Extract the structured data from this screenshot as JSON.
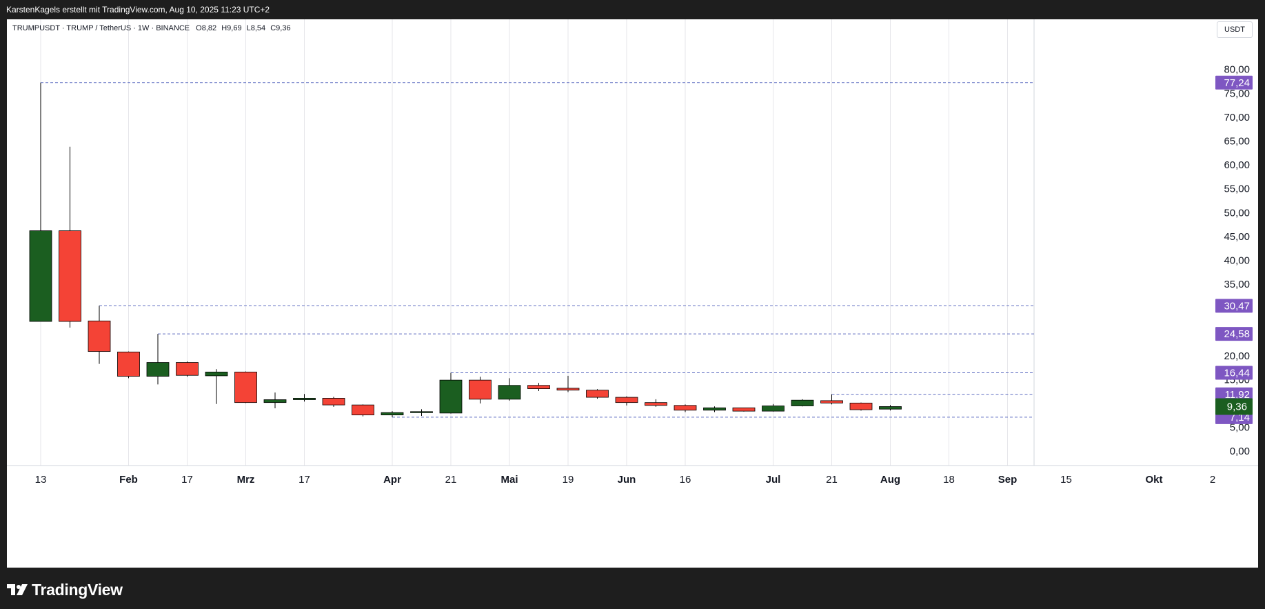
{
  "header": {
    "attribution": "KarstenKagels erstellt mit TradingView.com, Aug 10, 2025 11:23 UTC+2"
  },
  "legend": {
    "symbol": "TRUMPUSDT · TRUMP / TetherUS · 1W · BINANCE",
    "open": "O8,82",
    "high": "H9,69",
    "low": "L8,54",
    "close": "C9,36"
  },
  "axis": {
    "currency": "USDT"
  },
  "footer": {
    "brand": "TradingView"
  },
  "colors": {
    "up": "#1b5e20",
    "down": "#f44336",
    "level": "#7e57c2",
    "level_line": "#5c6bc0",
    "last_price": "#1b5e20"
  },
  "chart_data": {
    "type": "candlestick",
    "interval": "1W",
    "ylim": [
      -3,
      84
    ],
    "y_ticks": [
      {
        "value": 0,
        "label": "0,00"
      },
      {
        "value": 5,
        "label": "5,00"
      },
      {
        "value": 15,
        "label": "15,00"
      },
      {
        "value": 20,
        "label": "20,00"
      },
      {
        "value": 35,
        "label": "35,00"
      },
      {
        "value": 40,
        "label": "40,00"
      },
      {
        "value": 45,
        "label": "45,00"
      },
      {
        "value": 50,
        "label": "50,00"
      },
      {
        "value": 55,
        "label": "55,00"
      },
      {
        "value": 60,
        "label": "60,00"
      },
      {
        "value": 65,
        "label": "65,00"
      },
      {
        "value": 70,
        "label": "70,00"
      },
      {
        "value": 75,
        "label": "75,00"
      },
      {
        "value": 80,
        "label": "80,00"
      }
    ],
    "x_ticks": [
      {
        "index": 0,
        "label": "13",
        "bold": false
      },
      {
        "index": 3,
        "label": "Feb",
        "bold": true
      },
      {
        "index": 5,
        "label": "17",
        "bold": false
      },
      {
        "index": 7,
        "label": "Mrz",
        "bold": true
      },
      {
        "index": 9,
        "label": "17",
        "bold": false
      },
      {
        "index": 12,
        "label": "Apr",
        "bold": true
      },
      {
        "index": 14,
        "label": "21",
        "bold": false
      },
      {
        "index": 16,
        "label": "Mai",
        "bold": true
      },
      {
        "index": 18,
        "label": "19",
        "bold": false
      },
      {
        "index": 20,
        "label": "Jun",
        "bold": true
      },
      {
        "index": 22,
        "label": "16",
        "bold": false
      },
      {
        "index": 25,
        "label": "Jul",
        "bold": true
      },
      {
        "index": 27,
        "label": "21",
        "bold": false
      },
      {
        "index": 29,
        "label": "Aug",
        "bold": true
      },
      {
        "index": 31,
        "label": "18",
        "bold": false
      },
      {
        "index": 33,
        "label": "Sep",
        "bold": true
      },
      {
        "index": 35,
        "label": "15",
        "bold": false
      },
      {
        "index": 38,
        "label": "Okt",
        "bold": true
      },
      {
        "index": 40,
        "label": "2",
        "bold": false
      }
    ],
    "candles": [
      {
        "o": 27.2,
        "h": 77.24,
        "l": 27.2,
        "c": 46.2
      },
      {
        "o": 46.2,
        "h": 63.8,
        "l": 25.9,
        "c": 27.2
      },
      {
        "o": 27.3,
        "h": 30.47,
        "l": 18.3,
        "c": 20.9
      },
      {
        "o": 20.8,
        "h": 20.9,
        "l": 15.3,
        "c": 15.7
      },
      {
        "o": 15.7,
        "h": 24.58,
        "l": 14.0,
        "c": 18.6
      },
      {
        "o": 18.6,
        "h": 18.8,
        "l": 15.6,
        "c": 15.9
      },
      {
        "o": 15.8,
        "h": 17.2,
        "l": 9.9,
        "c": 16.6
      },
      {
        "o": 16.6,
        "h": 16.7,
        "l": 10.1,
        "c": 10.2
      },
      {
        "o": 10.2,
        "h": 12.3,
        "l": 9.0,
        "c": 10.8
      },
      {
        "o": 10.8,
        "h": 12.0,
        "l": 10.4,
        "c": 11.1
      },
      {
        "o": 11.1,
        "h": 11.4,
        "l": 9.3,
        "c": 9.7
      },
      {
        "o": 9.7,
        "h": 9.8,
        "l": 7.3,
        "c": 7.6
      },
      {
        "o": 7.6,
        "h": 8.4,
        "l": 7.14,
        "c": 8.1
      },
      {
        "o": 8.1,
        "h": 8.8,
        "l": 7.4,
        "c": 8.3
      },
      {
        "o": 8.0,
        "h": 16.44,
        "l": 7.9,
        "c": 14.9
      },
      {
        "o": 14.9,
        "h": 15.6,
        "l": 10.0,
        "c": 10.9
      },
      {
        "o": 10.9,
        "h": 15.3,
        "l": 10.6,
        "c": 13.8
      },
      {
        "o": 13.8,
        "h": 14.3,
        "l": 12.6,
        "c": 13.1
      },
      {
        "o": 13.2,
        "h": 15.8,
        "l": 12.4,
        "c": 12.8
      },
      {
        "o": 12.8,
        "h": 13.0,
        "l": 11.0,
        "c": 11.3
      },
      {
        "o": 11.3,
        "h": 11.5,
        "l": 9.6,
        "c": 10.2
      },
      {
        "o": 10.2,
        "h": 10.9,
        "l": 9.3,
        "c": 9.6
      },
      {
        "o": 9.6,
        "h": 9.8,
        "l": 8.2,
        "c": 8.6
      },
      {
        "o": 8.6,
        "h": 9.4,
        "l": 8.2,
        "c": 9.1
      },
      {
        "o": 9.1,
        "h": 9.1,
        "l": 8.3,
        "c": 8.4
      },
      {
        "o": 8.4,
        "h": 9.9,
        "l": 8.3,
        "c": 9.5
      },
      {
        "o": 9.5,
        "h": 10.9,
        "l": 9.4,
        "c": 10.7
      },
      {
        "o": 10.6,
        "h": 11.92,
        "l": 9.8,
        "c": 10.1
      },
      {
        "o": 10.1,
        "h": 10.2,
        "l": 8.5,
        "c": 8.7
      },
      {
        "o": 8.82,
        "h": 9.69,
        "l": 8.54,
        "c": 9.36
      }
    ],
    "levels": [
      {
        "value": 77.24,
        "label": "77,24",
        "from_index": 0
      },
      {
        "value": 30.47,
        "label": "30,47",
        "from_index": 2
      },
      {
        "value": 24.58,
        "label": "24,58",
        "from_index": 4
      },
      {
        "value": 16.44,
        "label": "16,44",
        "from_index": 14
      },
      {
        "value": 11.92,
        "label": "11,92",
        "from_index": 27
      },
      {
        "value": 7.14,
        "label": "7,14",
        "from_index": 12
      }
    ],
    "last_price": {
      "value": 9.36,
      "label": "9,36"
    }
  }
}
